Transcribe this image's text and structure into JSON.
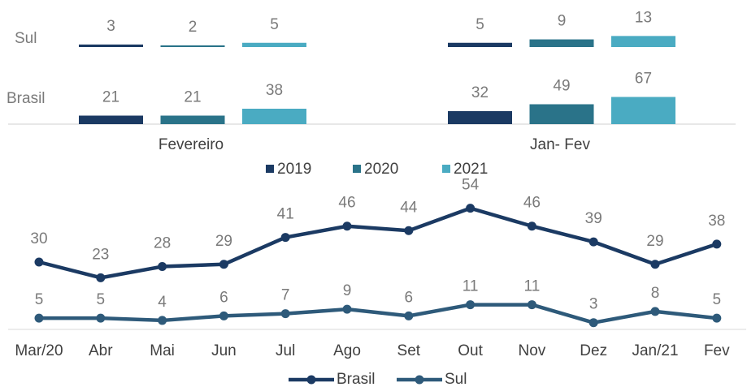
{
  "chart_data": [
    {
      "type": "bar",
      "categories": [
        "Fevereiro",
        "Jan- Fev"
      ],
      "rows": [
        "Sul",
        "Brasil"
      ],
      "series": [
        {
          "name": "2019",
          "color": "#1b3a63",
          "values": [
            [
              3,
              5
            ],
            [
              21,
              32
            ]
          ]
        },
        {
          "name": "2020",
          "color": "#2a7389",
          "values": [
            [
              2,
              9
            ],
            [
              21,
              49
            ]
          ]
        },
        {
          "name": "2021",
          "color": "#4aabc2",
          "values": [
            [
              5,
              13
            ],
            [
              38,
              67
            ]
          ]
        }
      ]
    },
    {
      "type": "line",
      "categories": [
        "Mar/20",
        "Abr",
        "Mai",
        "Jun",
        "Jul",
        "Ago",
        "Set",
        "Out",
        "Nov",
        "Dez",
        "Jan/21",
        "Fev"
      ],
      "ylim": [
        0,
        60
      ],
      "series": [
        {
          "name": "Brasil",
          "color": "#1b3a63",
          "values": [
            30,
            23,
            28,
            29,
            41,
            46,
            44,
            54,
            46,
            39,
            29,
            38
          ]
        },
        {
          "name": "Sul",
          "color": "#2e5a7a",
          "values": [
            5,
            5,
            4,
            6,
            7,
            9,
            6,
            11,
            11,
            3,
            8,
            5
          ]
        }
      ]
    }
  ]
}
